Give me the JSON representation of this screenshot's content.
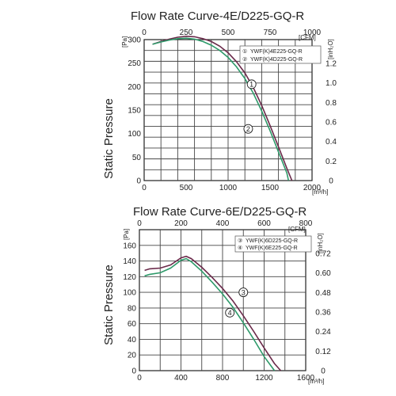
{
  "chart_data": [
    {
      "type": "line",
      "title": "Flow Rate Curve-4E/D225-GQ-R",
      "ylabel": "Static Pressure",
      "x_unit": "[m³/h]",
      "x_top_unit": "[CFM]",
      "y_unit": "[Pa]",
      "y_right_unit": "[inH₂O]",
      "xlim": [
        0,
        2000
      ],
      "ylim": [
        0,
        300
      ],
      "x_ticks": [
        "0",
        "500",
        "1000",
        "1500",
        "2000"
      ],
      "x_top_ticks": [
        "0",
        "250",
        "500",
        "750",
        "1000"
      ],
      "y_ticks": [
        "0",
        "50",
        "100",
        "150",
        "200",
        "250",
        "300"
      ],
      "y_right_ticks": [
        "0",
        "0.2",
        "0.4",
        "0.6",
        "0.8",
        "1.0",
        "1.2"
      ],
      "legend_position": "top-right",
      "series": [
        {
          "name": "YWF(K)4E225-GQ-R",
          "marker": "1",
          "color": "#6a2a4a",
          "x": [
            100,
            200,
            300,
            400,
            500,
            600,
            700,
            800,
            900,
            1000,
            1100,
            1200,
            1300,
            1400,
            1500,
            1600,
            1700,
            1760
          ],
          "y": [
            290,
            296,
            301,
            305,
            307,
            306,
            302,
            296,
            286,
            272,
            253,
            229,
            198,
            160,
            117,
            72,
            26,
            0
          ]
        },
        {
          "name": "YWF(K)4D225-GQ-R",
          "marker": "2",
          "color": "#2e9a6a",
          "x": [
            100,
            200,
            300,
            400,
            500,
            600,
            700,
            800,
            900,
            1000,
            1100,
            1200,
            1300,
            1400,
            1500,
            1600,
            1700,
            1720
          ],
          "y": [
            290,
            295,
            299,
            302,
            303,
            301,
            296,
            288,
            277,
            262,
            242,
            217,
            186,
            148,
            106,
            61,
            16,
            0
          ]
        }
      ],
      "markers": [
        {
          "label": "1",
          "x": 1280,
          "y": 205
        },
        {
          "label": "2",
          "x": 1240,
          "y": 110
        }
      ]
    },
    {
      "type": "line",
      "title": "Flow Rate Curve-6E/D225-GQ-R",
      "ylabel": "Static Pressure",
      "x_unit": "[m³/h]",
      "x_top_unit": "[CFM]",
      "y_unit": "[Pa]",
      "y_right_unit": "[inH₂O]",
      "xlim": [
        0,
        1600
      ],
      "ylim": [
        0,
        180
      ],
      "x_ticks": [
        "0",
        "400",
        "800",
        "1200",
        "1600"
      ],
      "x_top_ticks": [
        "0",
        "200",
        "400",
        "600",
        "800"
      ],
      "y_ticks": [
        "0",
        "20",
        "40",
        "60",
        "80",
        "100",
        "120",
        "140",
        "160"
      ],
      "y_right_ticks": [
        "0",
        "0.12",
        "0.24",
        "0.36",
        "0.48",
        "0.60",
        "0.72"
      ],
      "legend_position": "top-right",
      "series": [
        {
          "name": "YWF(K)6D225-GQ-R",
          "marker": "3",
          "color": "#6a2a4a",
          "x": [
            50,
            100,
            200,
            300,
            400,
            450,
            500,
            600,
            700,
            800,
            900,
            1000,
            1100,
            1200,
            1300,
            1360
          ],
          "y": [
            128,
            130,
            131,
            135,
            144,
            146,
            143,
            132,
            119,
            105,
            89,
            70,
            50,
            29,
            9,
            0
          ]
        },
        {
          "name": "YWF(K)6E225-GQ-R",
          "marker": "4",
          "color": "#2e9a6a",
          "x": [
            50,
            100,
            200,
            300,
            400,
            450,
            500,
            600,
            700,
            800,
            900,
            1000,
            1100,
            1200,
            1300
          ],
          "y": [
            121,
            123,
            125,
            131,
            141,
            143,
            139,
            127,
            113,
            98,
            81,
            61,
            40,
            18,
            0
          ]
        }
      ],
      "markers": [
        {
          "label": "3",
          "x": 1000,
          "y": 100
        },
        {
          "label": "4",
          "x": 870,
          "y": 74
        }
      ]
    }
  ]
}
